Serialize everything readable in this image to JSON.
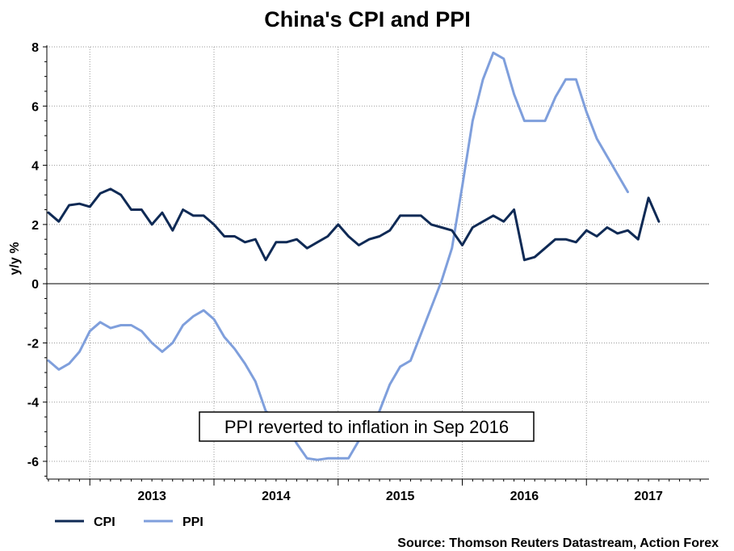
{
  "chart_data": {
    "type": "line",
    "title": "China's CPI and PPI",
    "ylabel": "y/y %",
    "xlabel": "",
    "ylim": [
      -6.6,
      8.0
    ],
    "yticks": [
      -6,
      -4,
      -2,
      0,
      2,
      4,
      6,
      8
    ],
    "x_start": "Sep 2012",
    "x_end": "Jan 2018",
    "year_labels": [
      "2013",
      "2014",
      "2015",
      "2016",
      "2017"
    ],
    "grid": true,
    "legend_position": "bottom-left",
    "series": [
      {
        "name": "CPI",
        "color": "#0f2a55",
        "values": [
          2.4,
          2.1,
          2.65,
          2.7,
          2.6,
          3.05,
          3.2,
          3.0,
          2.5,
          2.5,
          2.0,
          2.4,
          1.8,
          2.5,
          2.3,
          2.3,
          2.0,
          1.6,
          1.6,
          1.4,
          1.5,
          0.8,
          1.4,
          1.4,
          1.5,
          1.2,
          1.4,
          1.6,
          2.0,
          1.6,
          1.3,
          1.5,
          1.6,
          1.8,
          2.3,
          2.3,
          2.3,
          2.0,
          1.9,
          1.8,
          1.3,
          1.9,
          2.1,
          2.3,
          2.1,
          2.5,
          0.8,
          0.9,
          1.2,
          1.5,
          1.5,
          1.4,
          1.8,
          1.6,
          1.9,
          1.7,
          1.8,
          1.5,
          2.9,
          2.1
        ]
      },
      {
        "name": "PPI",
        "color": "#7f9fdc",
        "values": [
          -2.6,
          -2.9,
          -2.7,
          -2.3,
          -1.6,
          -1.3,
          -1.5,
          -1.4,
          -1.4,
          -1.6,
          -2.0,
          -2.3,
          -2.0,
          -1.4,
          -1.1,
          -0.9,
          -1.2,
          -1.8,
          -2.2,
          -2.7,
          -3.3,
          -4.3,
          -4.6,
          -4.8,
          -5.4,
          -5.9,
          -5.95,
          -5.9,
          -5.9,
          -5.9,
          -5.3,
          -4.9,
          -4.3,
          -3.4,
          -2.8,
          -2.6,
          -1.7,
          -0.8,
          0.1,
          1.2,
          3.3,
          5.5,
          6.9,
          7.8,
          7.6,
          6.4,
          5.5,
          5.5,
          5.5,
          6.3,
          6.9,
          6.9,
          5.8,
          4.9,
          4.3,
          3.7,
          3.1
        ]
      }
    ],
    "annotation": "PPI reverted to inflation in Sep 2016",
    "source": "Source: Thomson Reuters Datastream, Action Forex"
  }
}
